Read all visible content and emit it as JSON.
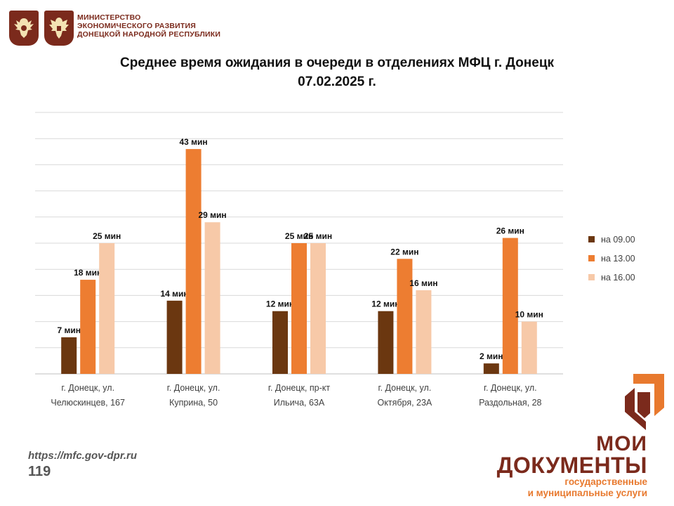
{
  "header": {
    "ministry_lines": [
      "МИНИСТЕРСТВО",
      "ЭКОНОМИЧЕСКОГО РАЗВИТИЯ",
      "ДОНЕЦКОЙ НАРОДНОЙ РЕСПУБЛИКИ"
    ]
  },
  "chart_data": {
    "type": "bar",
    "title": "Среднее время ожидания в очереди в отделениях МФЦ г. Донецк",
    "subtitle": "07.02.2025 г.",
    "categories": [
      [
        "г. Донецк, ул.",
        "Челюскинцев, 167"
      ],
      [
        "г. Донецк, ул.",
        "Куприна, 50"
      ],
      [
        "г. Донецк, пр-кт",
        "Ильича, 63А"
      ],
      [
        "г. Донецк, ул.",
        "Октября, 23А"
      ],
      [
        "г. Донецк, ул.",
        "Раздольная, 28"
      ]
    ],
    "series": [
      {
        "name": "на 09.00",
        "color": "#6b3710",
        "values": [
          7,
          14,
          12,
          12,
          2
        ]
      },
      {
        "name": "на 13.00",
        "color": "#ed7d31",
        "values": [
          18,
          43,
          25,
          22,
          26
        ]
      },
      {
        "name": "на 16.00",
        "color": "#f7c9a8",
        "values": [
          25,
          29,
          25,
          16,
          10
        ]
      }
    ],
    "value_suffix": " мин",
    "ylim": [
      0,
      50
    ],
    "grid": true,
    "legend_position": "right"
  },
  "footer": {
    "url": "https://mfc.gov-dpr.ru",
    "page": "119"
  },
  "logo": {
    "line1": "МОИ",
    "line2": "ДОКУМЕНТЫ",
    "sub1": "государственные",
    "sub2": "и муниципальные услуги"
  },
  "colors": {
    "brand": "#7b2a1c",
    "accent": "#ed7d31"
  }
}
